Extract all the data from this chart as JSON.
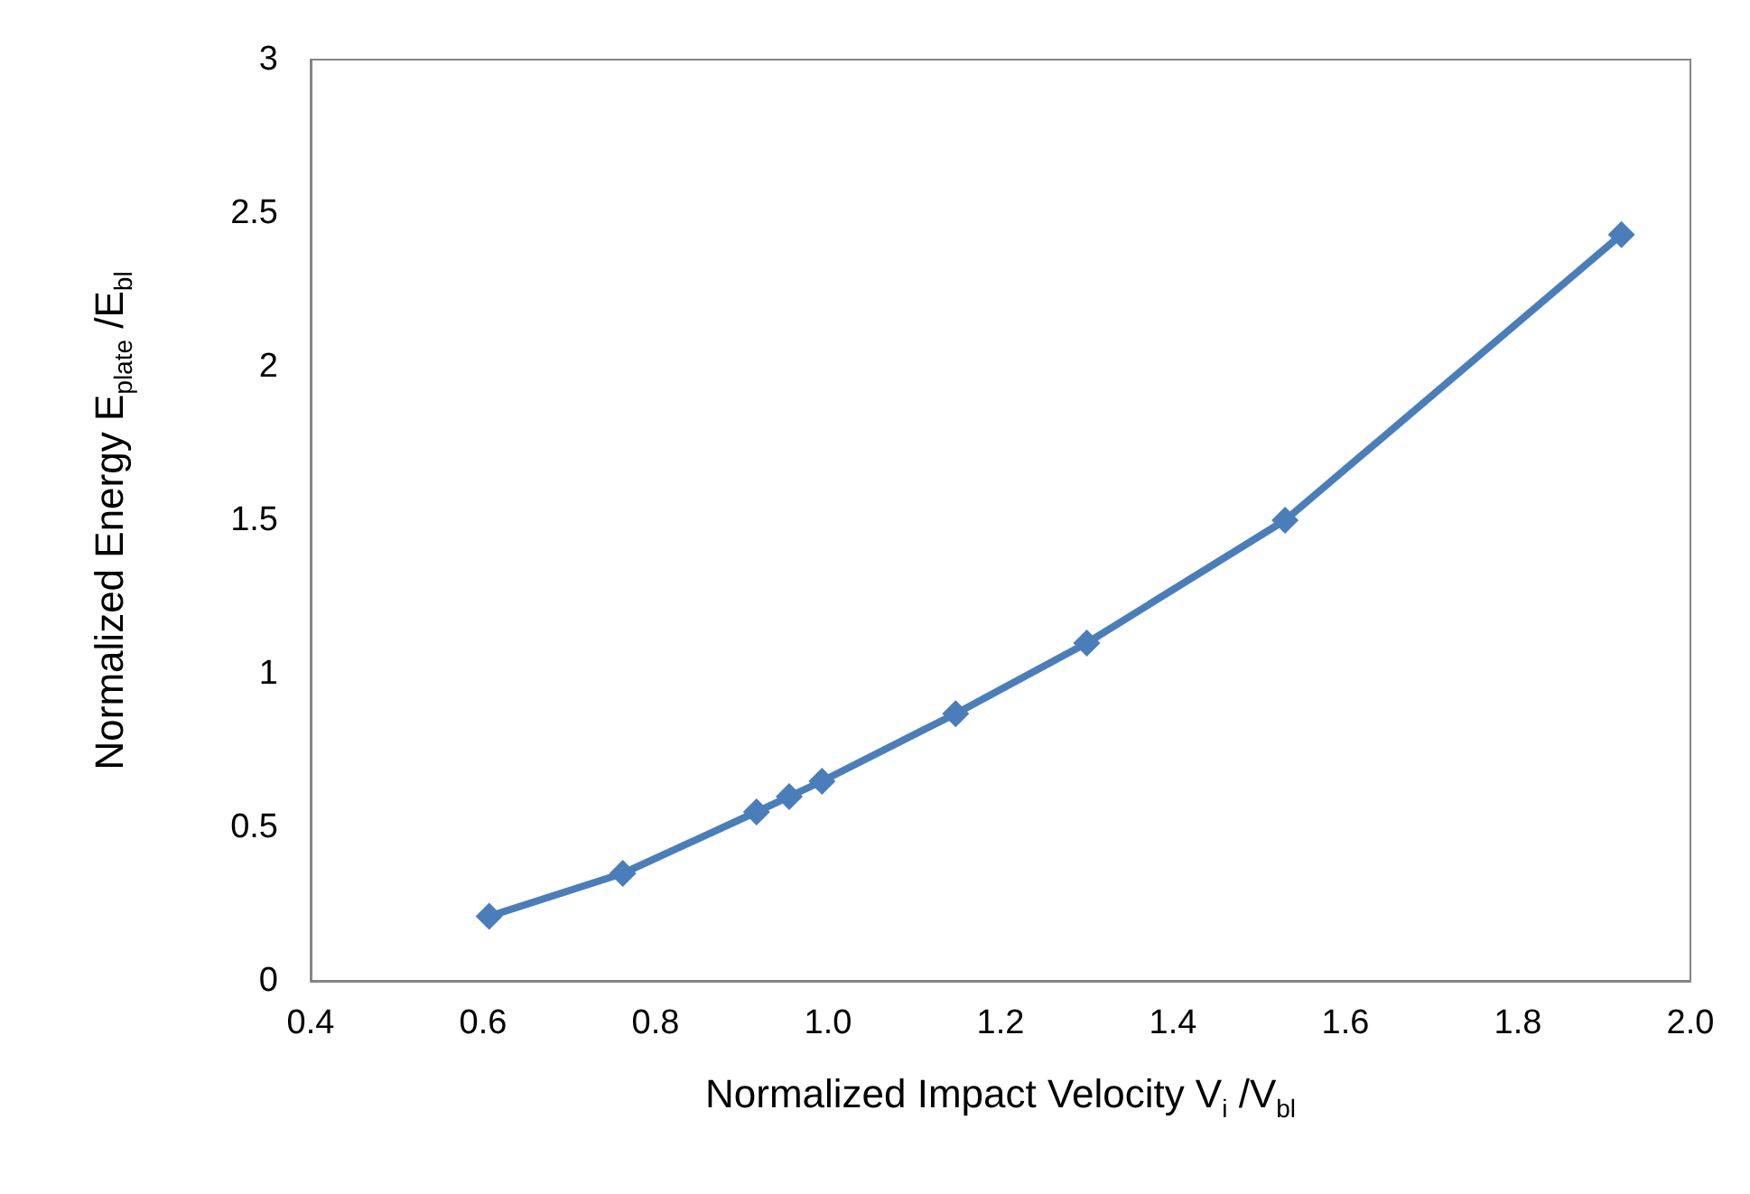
{
  "chart_data": {
    "type": "line",
    "xlabel": "Normalized Impact Velocity V$_{i}$ /V$_{bl}$",
    "ylabel": "Normalized Energy E$_{plate}$ /E$_{bl}$",
    "x": [
      0.607,
      0.762,
      0.917,
      0.955,
      0.993,
      1.148,
      1.3,
      1.53,
      1.92
    ],
    "series": [
      {
        "color": "#4a7ebb",
        "values": [
          0.21,
          0.35,
          0.55,
          0.6,
          0.65,
          0.87,
          1.1,
          1.5,
          2.43
        ]
      }
    ],
    "xlim": [
      0.4,
      2.0
    ],
    "xticks": [
      0.4,
      0.6,
      0.8,
      {
        "value": 1,
        "label": "1.0"
      },
      1.2,
      1.4,
      1.6,
      1.8,
      {
        "value": 2,
        "label": "2.0"
      }
    ],
    "ylim": [
      0,
      3
    ],
    "yticks": [
      0,
      0.5,
      1,
      1.5,
      2,
      2.5,
      3
    ],
    "grid": false,
    "marker": "diamond",
    "line_style": "solid"
  }
}
